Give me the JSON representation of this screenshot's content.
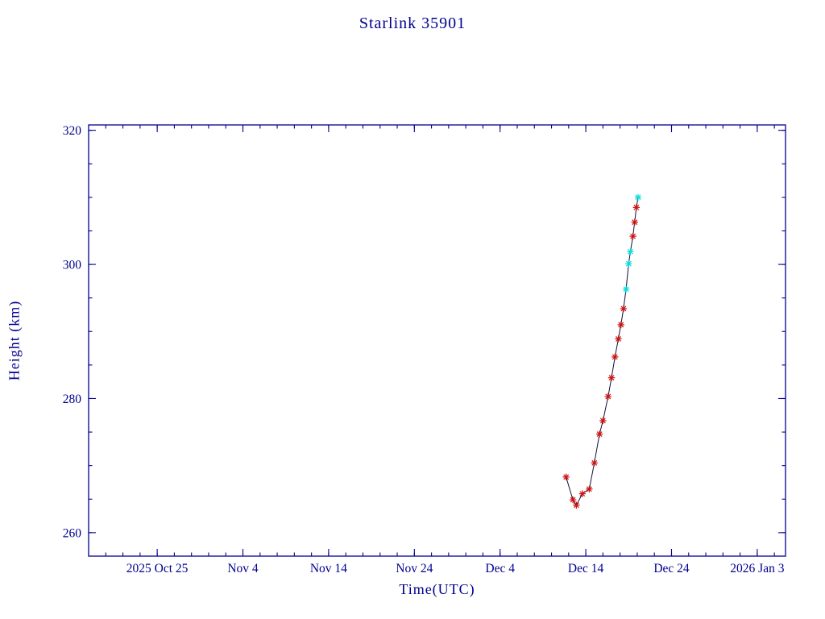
{
  "chart_data": {
    "type": "line",
    "title": "Starlink 35901",
    "xlabel": "Time(UTC)",
    "ylabel": "Height (km)",
    "x_unit": "days since 2025 Oct 17 (UTC)",
    "xlim": [
      0,
      81.3
    ],
    "ylim": [
      256.5,
      320.8
    ],
    "xticks": [
      {
        "day": 8,
        "label": "2025 Oct 25"
      },
      {
        "day": 18,
        "label": "Nov 4"
      },
      {
        "day": 28,
        "label": "Nov 14"
      },
      {
        "day": 38,
        "label": "Nov 24"
      },
      {
        "day": 48,
        "label": "Dec 4"
      },
      {
        "day": 58,
        "label": "Dec 14"
      },
      {
        "day": 68,
        "label": "Dec 24"
      },
      {
        "day": 78,
        "label": "2026 Jan 3"
      }
    ],
    "x_minor_step": 2,
    "yticks": [
      {
        "v": 260,
        "label": "260"
      },
      {
        "v": 280,
        "label": "280"
      },
      {
        "v": 300,
        "label": "300"
      },
      {
        "v": 320,
        "label": "320"
      }
    ],
    "y_minor_step": 5,
    "grid": false,
    "legend": "none",
    "series": [
      {
        "name": "orbital-height-km",
        "marker": "asterisk",
        "points": [
          {
            "day": 55.7,
            "h": 268.3,
            "c": "red"
          },
          {
            "day": 56.5,
            "h": 264.9,
            "c": "red"
          },
          {
            "day": 56.9,
            "h": 264.1,
            "c": "red"
          },
          {
            "day": 57.6,
            "h": 265.8,
            "c": "red"
          },
          {
            "day": 58.4,
            "h": 266.5,
            "c": "red"
          },
          {
            "day": 59.0,
            "h": 270.4,
            "c": "red"
          },
          {
            "day": 59.6,
            "h": 274.7,
            "c": "red"
          },
          {
            "day": 60.0,
            "h": 276.7,
            "c": "red"
          },
          {
            "day": 60.6,
            "h": 280.3,
            "c": "red"
          },
          {
            "day": 61.0,
            "h": 283.1,
            "c": "red"
          },
          {
            "day": 61.4,
            "h": 286.2,
            "c": "red"
          },
          {
            "day": 61.8,
            "h": 288.9,
            "c": "red"
          },
          {
            "day": 62.1,
            "h": 291.0,
            "c": "red"
          },
          {
            "day": 62.4,
            "h": 293.4,
            "c": "red"
          },
          {
            "day": 62.7,
            "h": 296.3,
            "c": "cyan"
          },
          {
            "day": 63.0,
            "h": 300.1,
            "c": "cyan"
          },
          {
            "day": 63.2,
            "h": 301.9,
            "c": "cyan"
          },
          {
            "day": 63.5,
            "h": 304.2,
            "c": "red"
          },
          {
            "day": 63.7,
            "h": 306.3,
            "c": "red"
          },
          {
            "day": 63.9,
            "h": 308.5,
            "c": "red"
          },
          {
            "day": 64.1,
            "h": 310.0,
            "c": "cyan"
          }
        ]
      }
    ],
    "colors": {
      "axis": "#000090",
      "text": "#000090",
      "line": "#10103a",
      "marker_red": "#cc1010",
      "marker_cyan": "#00dde0",
      "background": "#ffffff"
    }
  }
}
